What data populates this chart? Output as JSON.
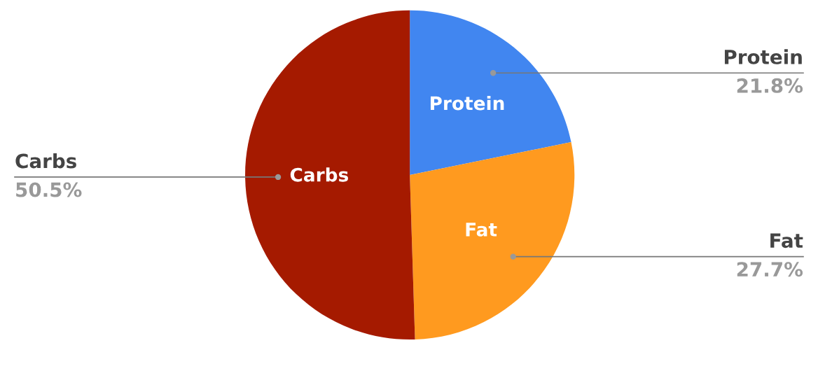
{
  "chart_data": {
    "type": "pie",
    "categories": [
      "Protein",
      "Fat",
      "Carbs"
    ],
    "values": [
      21.8,
      27.7,
      50.5
    ],
    "colors": [
      "#4186f0",
      "#ff9a1f",
      "#a51a00"
    ],
    "value_labels": [
      "21.8%",
      "27.7%",
      "50.5%"
    ]
  }
}
